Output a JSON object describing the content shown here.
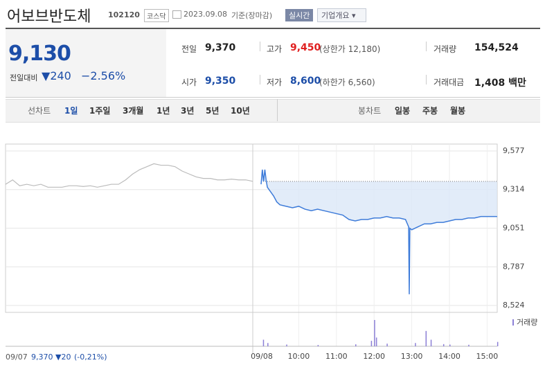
{
  "header": {
    "title": "어보브반도체",
    "code": "102120",
    "market": "코스닥",
    "date": "2023.09.08",
    "basis": "기준(장마감)",
    "realtime": "실시간",
    "overview": "기업개요"
  },
  "summary": {
    "price": "9,130",
    "change_label": "전일대비",
    "change": "240",
    "rate": "−2.56%",
    "items": [
      {
        "label": "전일",
        "value": "9,370"
      },
      {
        "label": "고가",
        "value": "9,450",
        "note": "(상한가 12,180)"
      },
      {
        "label": "거래량",
        "value": "154,524"
      },
      {
        "label": "시가",
        "value": "9,350"
      },
      {
        "label": "저가",
        "value": "8,600",
        "note": "(하한가 6,560)"
      },
      {
        "label": "거래대금",
        "value": "1,408 백만"
      }
    ]
  },
  "tabs": {
    "line_chart": "선차트",
    "periods": [
      "1일",
      "1주일",
      "3개월",
      "1년",
      "3년",
      "5년",
      "10년"
    ],
    "candle_chart": "봉차트",
    "candles": [
      "일봉",
      "주봉",
      "월봉"
    ]
  },
  "chart": {
    "prev_close": 9370,
    "ylim": [
      8524,
      9577
    ],
    "yticks": [
      {
        "value": 9577,
        "label": "9,577"
      },
      {
        "value": 9314,
        "label": "9,314"
      },
      {
        "value": 9051,
        "label": "9,051"
      },
      {
        "value": 8787,
        "label": "8,787"
      },
      {
        "value": 8524,
        "label": "8,524"
      }
    ],
    "xticks": [
      {
        "value": 60,
        "label": "10:00"
      },
      {
        "value": 120,
        "label": "11:00"
      },
      {
        "value": 180,
        "label": "12:00"
      },
      {
        "value": 240,
        "label": "13:00"
      },
      {
        "value": 300,
        "label": "14:00"
      },
      {
        "value": 360,
        "label": "15:00"
      }
    ],
    "day_labels": [
      "09/07",
      "09/08"
    ],
    "prev_day": {
      "values": [
        9350,
        9380,
        9340,
        9350,
        9340,
        9350,
        9330,
        9330,
        9330,
        9340,
        9340,
        9335,
        9340,
        9330,
        9340,
        9350,
        9350,
        9380,
        9420,
        9450,
        9470,
        9490,
        9480,
        9480,
        9470,
        9440,
        9420,
        9400,
        9390,
        9390,
        9380,
        9380,
        9385,
        9380,
        9380,
        9370
      ]
    },
    "today": {
      "x": [
        0,
        2,
        4,
        6,
        8,
        10,
        15,
        20,
        25,
        30,
        40,
        50,
        60,
        70,
        80,
        90,
        100,
        110,
        120,
        130,
        140,
        150,
        160,
        170,
        180,
        190,
        200,
        210,
        220,
        230,
        235,
        236,
        237,
        240,
        250,
        260,
        270,
        280,
        290,
        300,
        310,
        320,
        330,
        340,
        350,
        360,
        370,
        376
      ],
      "values": [
        9350,
        9450,
        9370,
        9450,
        9380,
        9330,
        9300,
        9270,
        9230,
        9210,
        9200,
        9190,
        9200,
        9180,
        9170,
        9180,
        9170,
        9160,
        9150,
        9140,
        9110,
        9100,
        9110,
        9110,
        9120,
        9120,
        9130,
        9120,
        9120,
        9110,
        9060,
        8600,
        9050,
        9040,
        9060,
        9080,
        9080,
        9090,
        9090,
        9100,
        9110,
        9110,
        9120,
        9120,
        9130,
        9130,
        9130,
        9130
      ]
    },
    "volume_label": "거래량",
    "volume": {
      "x": [
        3,
        10,
        40,
        90,
        150,
        175,
        180,
        183,
        200,
        245,
        262,
        270,
        290,
        300,
        330,
        376
      ],
      "values": [
        3000,
        1500,
        800,
        600,
        900,
        2500,
        12000,
        4000,
        1200,
        1500,
        7000,
        3000,
        1000,
        800,
        700,
        2000
      ]
    }
  },
  "footer": {
    "date": "09/07",
    "price": "9,370",
    "change": "20",
    "rate": "(-0,21%)"
  }
}
